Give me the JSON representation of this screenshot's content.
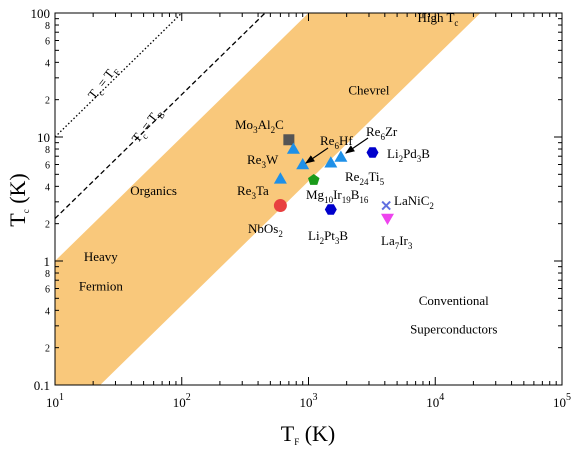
{
  "chart_data": {
    "type": "scatter",
    "xscale": "log",
    "yscale": "log",
    "xlim": [
      10,
      100000
    ],
    "ylim": [
      0.1,
      100
    ],
    "xlabel": "T_F (K)",
    "ylabel": "T_c (K)",
    "x_ticks": [
      "10^1",
      "10^2",
      "10^3",
      "10^4",
      "10^5"
    ],
    "y_major_ticks": [
      "0.1",
      "1",
      "10",
      "100"
    ],
    "y_minor_ticks": [
      "2",
      "4",
      "6",
      "8"
    ],
    "band": {
      "lower_line_ratio": 0.0044,
      "upper_line_ratio": 0.1
    },
    "dotted_line": {
      "label": "T_c = T_F",
      "ratio": 1.0
    },
    "dashed_line": {
      "label": "T_c = T_B",
      "ratio": 0.22
    },
    "regions": [
      {
        "label": "High T_c",
        "x": 10500,
        "y": 85
      },
      {
        "label": "Chevrel",
        "x": 3000,
        "y": 22
      },
      {
        "label": "Organics",
        "x": 60,
        "y": 3.4
      },
      {
        "label": "Heavy",
        "x": 23,
        "y": 1.0
      },
      {
        "label": "Fermion",
        "x": 23,
        "y": 0.58
      },
      {
        "label": "Conventional",
        "x": 14000,
        "y": 0.44
      },
      {
        "label": "Superconductors",
        "x": 14000,
        "y": 0.26
      }
    ],
    "points": [
      {
        "name": "Mo3Al2C",
        "x": 700,
        "y": 9.5,
        "marker": "square",
        "color": "#555555"
      },
      {
        "name": "Re3W",
        "x": 760,
        "y": 8.0,
        "marker": "triangle-up",
        "color": "#1e90e8"
      },
      {
        "name": "Re6Hf",
        "x": 900,
        "y": 6.0,
        "marker": "triangle-up",
        "color": "#1e90e8"
      },
      {
        "name": "Re24Ti5",
        "x": 1500,
        "y": 6.2,
        "marker": "triangle-up",
        "color": "#1e90e8"
      },
      {
        "name": "Re6Zr",
        "x": 1800,
        "y": 6.9,
        "marker": "triangle-up",
        "color": "#1e90e8"
      },
      {
        "name": "Re3Ta",
        "x": 600,
        "y": 4.6,
        "marker": "triangle-up",
        "color": "#1e90e8"
      },
      {
        "name": "Mg10Ir19B16",
        "x": 1100,
        "y": 4.5,
        "marker": "pentagon",
        "color": "#1a9a1a"
      },
      {
        "name": "Li2Pd3B",
        "x": 3200,
        "y": 7.5,
        "marker": "hexagon",
        "color": "#0000cc"
      },
      {
        "name": "Li2Pt3B",
        "x": 1500,
        "y": 2.6,
        "marker": "hexagon",
        "color": "#0000cc"
      },
      {
        "name": "NbOs2",
        "x": 600,
        "y": 2.8,
        "marker": "circle",
        "color": "#e84040"
      },
      {
        "name": "LaNiC2",
        "x": 4100,
        "y": 2.8,
        "marker": "x",
        "color": "#6070e0"
      },
      {
        "name": "La7Ir3",
        "x": 4200,
        "y": 2.2,
        "marker": "triangle-down",
        "color": "#ee44ee"
      }
    ],
    "labels": [
      {
        "base": "Mo",
        "sub1": "3",
        "mid1": "Al",
        "sub2": "2",
        "mid2": "C",
        "lx": 240,
        "ly": 408
      },
      {
        "base": "Re",
        "sub1": "3",
        "mid1": "W",
        "lx": 300,
        "ly": 406
      }
    ],
    "colors": {
      "band": "#f9c87b",
      "axes": "#000000"
    }
  }
}
